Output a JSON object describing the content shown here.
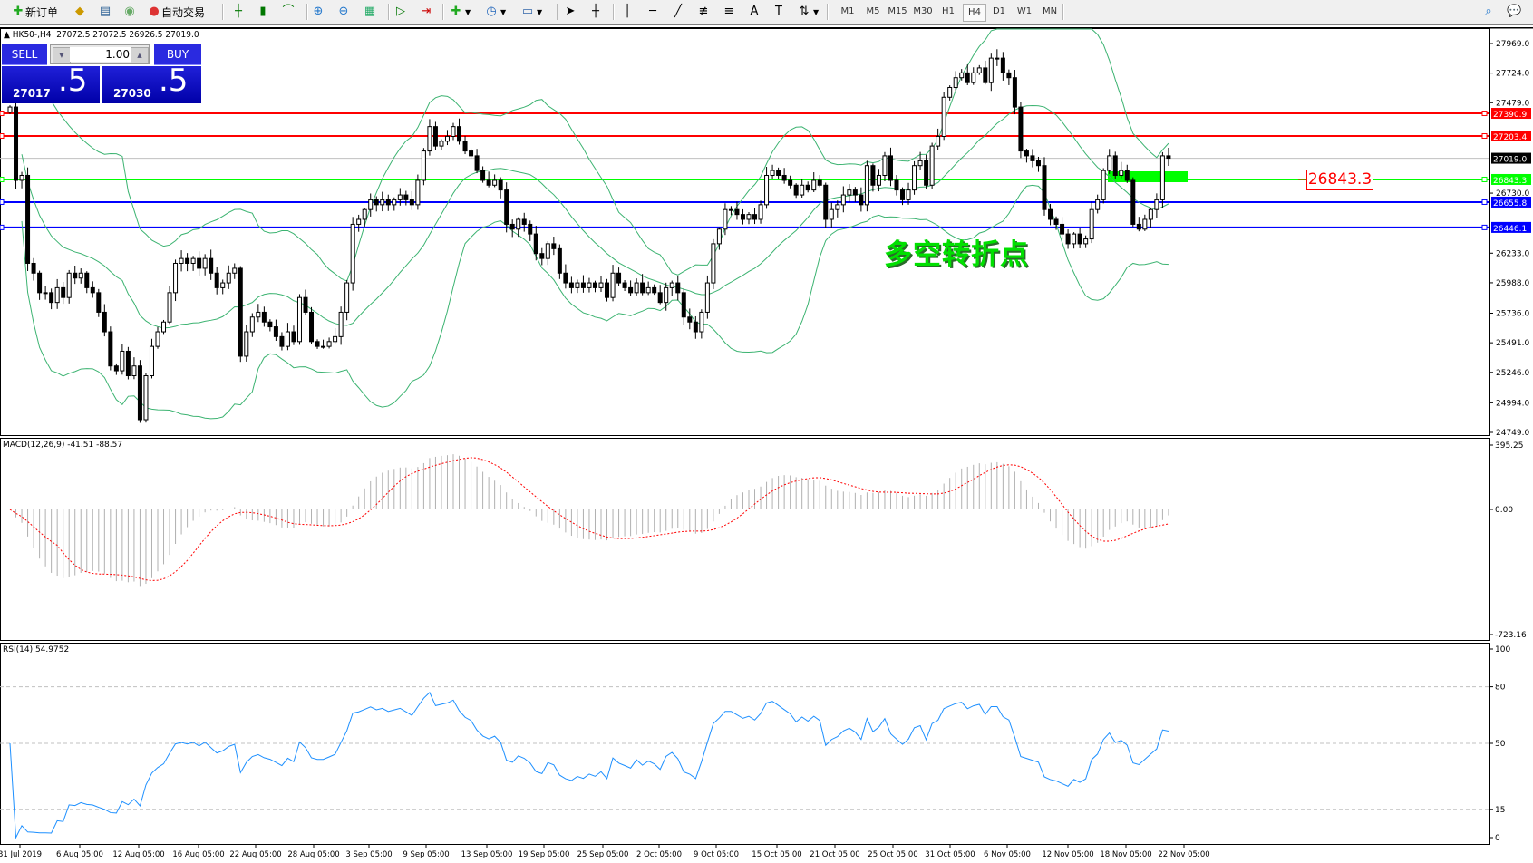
{
  "toolbar": {
    "new_order": "新订单",
    "auto_trading": "自动交易",
    "timeframes": [
      "M1",
      "M5",
      "M15",
      "M30",
      "H1",
      "H4",
      "D1",
      "W1",
      "MN"
    ],
    "selected_timeframe": "H4",
    "icons": [
      "new-order-icon",
      "market-watch-icon",
      "navigator-icon",
      "signals-icon",
      "auto-trading-icon",
      "bar-chart-icon",
      "candlestick-icon",
      "line-chart-icon",
      "zoom-in-icon",
      "zoom-out-icon",
      "tile-windows-icon",
      "autoscroll-icon",
      "chart-shift-icon",
      "indicators-icon",
      "periods-icon",
      "templates-icon",
      "cursor-icon",
      "crosshair-icon",
      "vertical-line-icon",
      "horizontal-line-icon",
      "trendline-icon",
      "fibonacci-fan-icon",
      "fibonacci-icon",
      "text-icon",
      "text-label-icon",
      "arrows-icon",
      "search-icon",
      "chat-icon"
    ]
  },
  "header": {
    "symbol": "HK50-,H4",
    "ohlc": "27072.5 27072.5 26926.5 27019.0"
  },
  "trade_panel": {
    "sell_label": "SELL",
    "buy_label": "BUY",
    "lot": "1.00",
    "sell_price_main": "27017",
    "sell_price_frac": ".5",
    "buy_price_main": "27030",
    "buy_price_frac": ".5"
  },
  "annotation": "多空转折点",
  "price_tag": "26843.3",
  "levels": [
    {
      "price": "27390.9",
      "color": "#ff0000"
    },
    {
      "price": "27203.4",
      "color": "#ff0000"
    },
    {
      "price": "27019.0",
      "color": "#000000",
      "bid": true
    },
    {
      "price": "26843.3",
      "color": "#00ff00"
    },
    {
      "price": "26655.8",
      "color": "#0000ff"
    },
    {
      "price": "26446.1",
      "color": "#0000ff"
    }
  ],
  "price_axis": [
    "27969.0",
    "27724.0",
    "27479.0",
    "26730.0",
    "26233.0",
    "25988.0",
    "25736.0",
    "25491.0",
    "25246.0",
    "24994.0",
    "24749.0"
  ],
  "macd": {
    "label": "MACD(12,26,9) -41.51 -88.57",
    "axis": [
      "395.25",
      "0.00",
      "-723.16"
    ]
  },
  "rsi": {
    "label": "RSI(14) 54.9752",
    "axis": [
      "100",
      "80",
      "50",
      "15",
      "0"
    ]
  },
  "time_axis": [
    "31 Jul 2019",
    "6 Aug 05:00",
    "12 Aug 05:00",
    "16 Aug 05:00",
    "22 Aug 05:00",
    "28 Aug 05:00",
    "3 Sep 05:00",
    "9 Sep 05:00",
    "13 Sep 05:00",
    "19 Sep 05:00",
    "25 Sep 05:00",
    "2 Oct 05:00",
    "9 Oct 05:00",
    "15 Oct 05:00",
    "21 Oct 05:00",
    "25 Oct 05:00",
    "31 Oct 05:00",
    "6 Nov 05:00",
    "12 Nov 05:00",
    "18 Nov 05:00",
    "22 Nov 05:00"
  ],
  "colors": {
    "bands": "#3cb371",
    "rsi": "#1e90ff",
    "macd_signal": "#ff0000",
    "macd_hist": "#b0b0b0",
    "zone": "#00ff00"
  },
  "chart_data": {
    "type": "candlestick",
    "ylim": [
      24749,
      27969
    ],
    "overlays": [
      "Bollinger Bands"
    ],
    "closes": [
      27443,
      26836,
      26877,
      26149,
      26068,
      25906,
      25906,
      25825,
      25947,
      25866,
      26068,
      26027,
      26068,
      25947,
      25906,
      25744,
      25582,
      25299,
      25259,
      25421,
      25218,
      25299,
      24854,
      25218,
      25461,
      25582,
      25663,
      25906,
      26149,
      26189,
      26149,
      26189,
      26108,
      26189,
      26068,
      25947,
      25987,
      26068,
      26108,
      25380,
      25582,
      25704,
      25744,
      25663,
      25623,
      25542,
      25461,
      25582,
      25501,
      25866,
      25744,
      25501,
      25461,
      25461,
      25501,
      25542,
      25744,
      25987,
      26472,
      26513,
      26594,
      26675,
      26634,
      26675,
      26634,
      26675,
      26715,
      26675,
      26634,
      26836,
      27079,
      27281,
      27120,
      27160,
      27200,
      27281,
      27160,
      27079,
      27039,
      26917,
      26836,
      26796,
      26836,
      26756,
      26472,
      26432,
      26513,
      26472,
      26392,
      26230,
      26189,
      26311,
      26270,
      26068,
      25987,
      25947,
      25987,
      25947,
      25987,
      25947,
      25987,
      25866,
      26068,
      25987,
      25947,
      25906,
      25987,
      25906,
      25947,
      25906,
      25825,
      25947,
      25987,
      25906,
      25704,
      25663,
      25582,
      25744,
      25987,
      26311,
      26432,
      26594,
      26594,
      26553,
      26513,
      26553,
      26513,
      26634,
      26877,
      26917,
      26877,
      26836,
      26796,
      26715,
      26796,
      26756,
      26836,
      26796,
      26513,
      26594,
      26634,
      26715,
      26756,
      26715,
      26634,
      26958,
      26796,
      26877,
      27039,
      26836,
      26756,
      26675,
      26756,
      26958,
      26998,
      26796,
      27120,
      27200,
      27524,
      27605,
      27686,
      27726,
      27645,
      27726,
      27767,
      27645,
      27848,
      27848,
      27726,
      27686,
      27443,
      27079,
      27039,
      26998,
      26958,
      26594,
      26513,
      26472,
      26392,
      26311,
      26392,
      26311,
      26351,
      26594,
      26675,
      26917,
      27039,
      26877,
      26917,
      26836,
      26472,
      26432,
      26513,
      26594,
      26675,
      27039,
      27019
    ]
  }
}
